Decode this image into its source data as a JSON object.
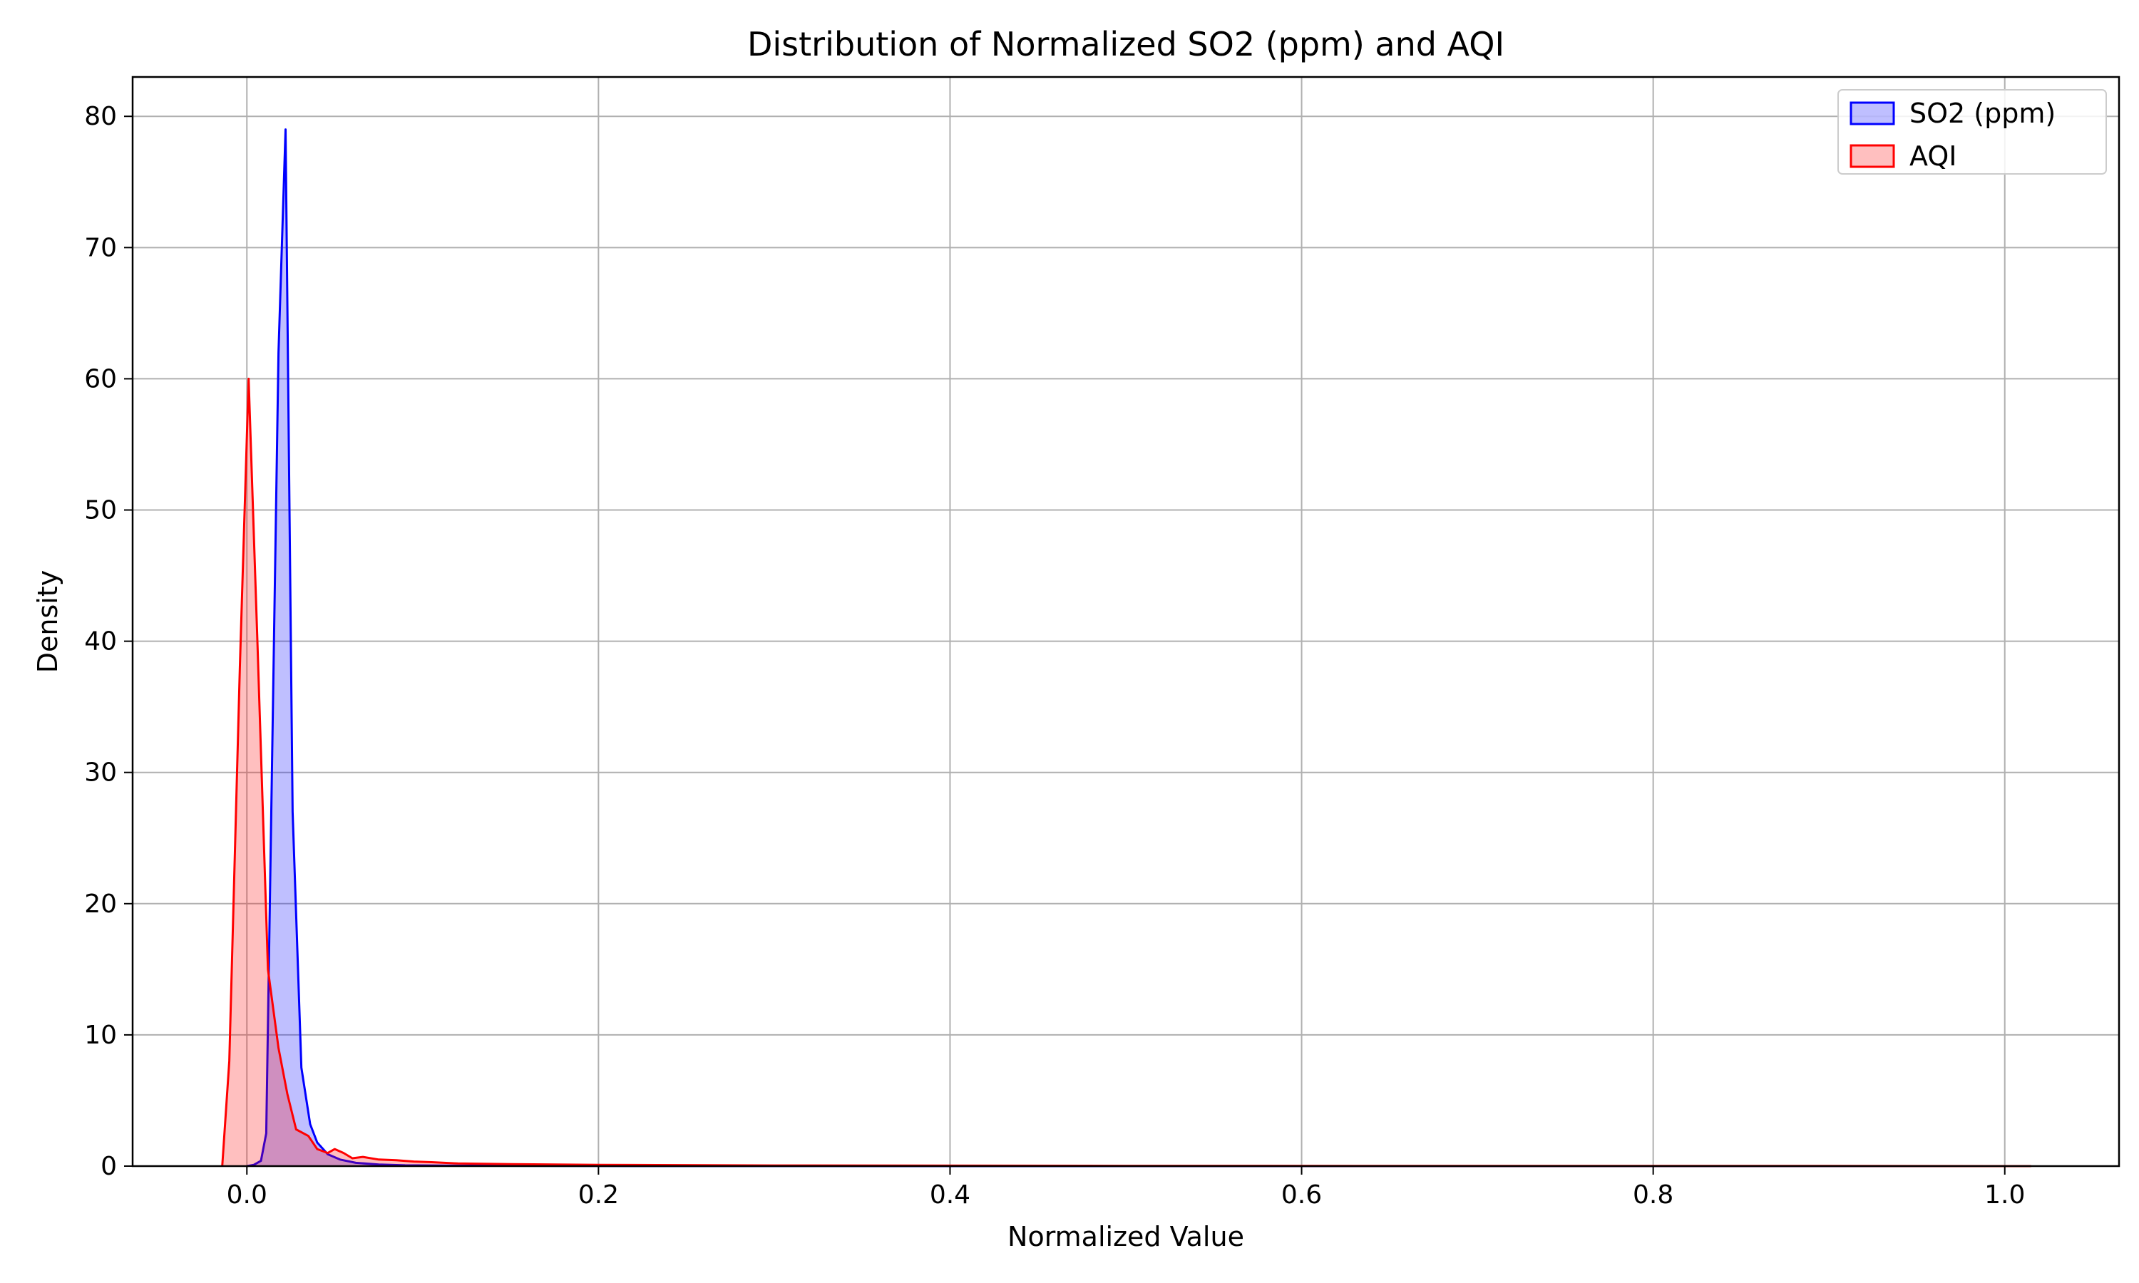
{
  "chart_data": {
    "type": "area",
    "title": "Distribution of Normalized SO2 (ppm) and AQI",
    "xlabel": "Normalized Value",
    "ylabel": "Density",
    "xlim": [
      -0.065,
      1.065
    ],
    "ylim": [
      0,
      83
    ],
    "xticks": [
      0.0,
      0.2,
      0.4,
      0.6,
      0.8,
      1.0
    ],
    "xtick_labels": [
      "0.0",
      "0.2",
      "0.4",
      "0.6",
      "0.8",
      "1.0"
    ],
    "yticks": [
      0,
      10,
      20,
      30,
      40,
      50,
      60,
      70,
      80
    ],
    "ytick_labels": [
      "0",
      "10",
      "20",
      "30",
      "40",
      "50",
      "60",
      "70",
      "80"
    ],
    "grid": true,
    "legend_position": "top-right",
    "series": [
      {
        "name": "SO2 (ppm)",
        "color": "#0000ff",
        "fill": "#0000ff",
        "x": [
          0.0,
          0.004,
          0.008,
          0.011,
          0.018,
          0.022,
          0.026,
          0.031,
          0.036,
          0.04,
          0.046,
          0.053,
          0.062,
          0.075,
          0.09,
          0.12,
          0.2,
          0.4,
          0.7,
          1.0
        ],
        "y": [
          0,
          0.1,
          0.4,
          2.5,
          62,
          79,
          27,
          7.5,
          3.2,
          1.8,
          0.9,
          0.5,
          0.25,
          0.12,
          0.06,
          0.03,
          0.01,
          0,
          0,
          0
        ]
      },
      {
        "name": "AQI",
        "color": "#ff0000",
        "fill": "#ff0000",
        "x": [
          -0.014,
          -0.01,
          -0.004,
          0.001,
          0.006,
          0.012,
          0.018,
          0.023,
          0.028,
          0.035,
          0.04,
          0.046,
          0.05,
          0.055,
          0.06,
          0.066,
          0.075,
          0.085,
          0.095,
          0.105,
          0.12,
          0.15,
          0.2,
          0.3,
          0.5,
          0.7,
          0.9,
          1.015
        ],
        "y": [
          0,
          8,
          38,
          60,
          40,
          15,
          9,
          5.5,
          2.8,
          2.3,
          1.3,
          1.0,
          1.3,
          1.0,
          0.6,
          0.7,
          0.5,
          0.45,
          0.35,
          0.3,
          0.2,
          0.15,
          0.1,
          0.05,
          0.02,
          0.01,
          0.01,
          0
        ]
      }
    ]
  }
}
